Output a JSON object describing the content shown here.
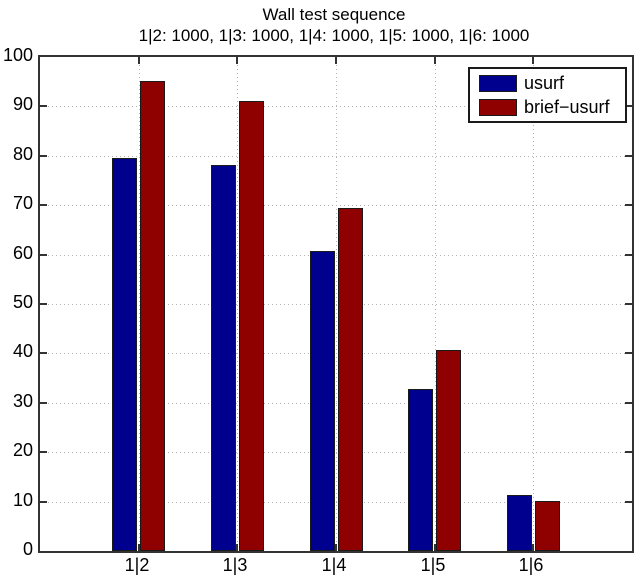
{
  "chart_data": {
    "type": "bar",
    "title": "Wall test sequence",
    "subtitle": "1|2: 1000, 1|3: 1000, 1|4: 1000, 1|5: 1000, 1|6: 1000",
    "categories": [
      "1|2",
      "1|3",
      "1|4",
      "1|5",
      "1|6"
    ],
    "series": [
      {
        "name": "usurf",
        "color": "#00008F",
        "values": [
          79.5,
          78.2,
          60.7,
          32.7,
          11.3
        ]
      },
      {
        "name": "brief−usurf",
        "color": "#8F0000",
        "values": [
          95.1,
          91.0,
          69.5,
          40.6,
          10.1
        ]
      }
    ],
    "xlabel": "",
    "ylabel": "",
    "ylim": [
      0,
      100
    ],
    "yticks": [
      0,
      10,
      20,
      30,
      40,
      50,
      60,
      70,
      80,
      90,
      100
    ],
    "grid": true,
    "legend_position": "northeast"
  },
  "colors": {
    "axis": "#333333",
    "grid": "#b4b4b4",
    "background": "#ffffff",
    "text": "#000000"
  }
}
